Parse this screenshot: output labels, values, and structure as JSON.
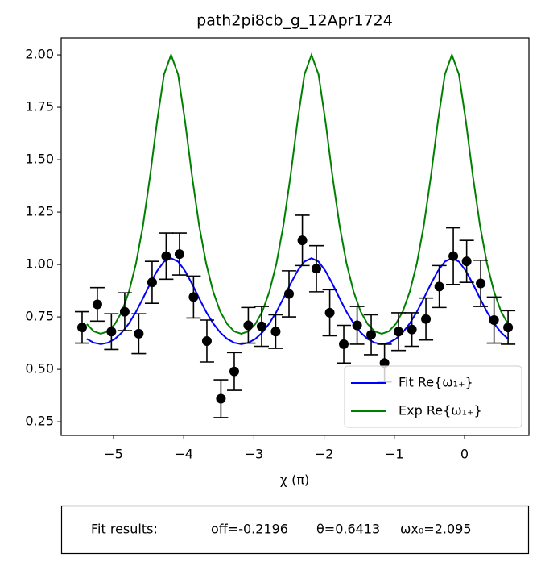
{
  "chart_data": {
    "type": "scatter",
    "title": "path2pi8cb_g_12Apr1724",
    "x_label": "χ (π)",
    "xlim": [
      -5.745,
      0.917
    ],
    "ylim": [
      0.185,
      2.081
    ],
    "xticks": [
      {
        "value": -5,
        "label": "−5"
      },
      {
        "value": -4,
        "label": "−4"
      },
      {
        "value": -3,
        "label": "−3"
      },
      {
        "value": -2,
        "label": "−2"
      },
      {
        "value": -1,
        "label": "−1"
      },
      0
    ],
    "yticks": [
      0.25,
      {
        "value": 0.5,
        "label": "0.50"
      },
      0.75,
      {
        "value": 1,
        "label": "1.00"
      },
      1.25,
      {
        "value": 1.5,
        "label": "1.50"
      },
      1.75,
      {
        "value": 2,
        "label": "2.00"
      }
    ],
    "legend": "lower right",
    "series": [
      {
        "name": "Fit Re{ω₁₊}",
        "color": "#0000ff",
        "x": [
          -5.38,
          -5.28,
          -5.18,
          -5.08,
          -4.98,
          -4.88,
          -4.78,
          -4.68,
          -4.58,
          -4.48,
          -4.38,
          -4.28,
          -4.18,
          -4.08,
          -3.98,
          -3.88,
          -3.78,
          -3.68,
          -3.58,
          -3.48,
          -3.38,
          -3.28,
          -3.18,
          -3.08,
          -2.98,
          -2.88,
          -2.78,
          -2.68,
          -2.58,
          -2.48,
          -2.38,
          -2.28,
          -2.18,
          -2.08,
          -1.98,
          -1.88,
          -1.78,
          -1.68,
          -1.58,
          -1.48,
          -1.38,
          -1.28,
          -1.18,
          -1.08,
          -0.98,
          -0.88,
          -0.78,
          -0.68,
          -0.58,
          -0.48,
          -0.38,
          -0.28,
          -0.18,
          -0.08,
          0.02,
          0.12,
          0.22,
          0.32,
          0.42,
          0.52,
          0.62
        ],
        "values": [
          0.645,
          0.627,
          0.62,
          0.627,
          0.645,
          0.676,
          0.719,
          0.774,
          0.839,
          0.907,
          0.969,
          1.014,
          1.03,
          1.014,
          0.969,
          0.907,
          0.839,
          0.774,
          0.719,
          0.676,
          0.645,
          0.627,
          0.62,
          0.627,
          0.645,
          0.676,
          0.719,
          0.774,
          0.839,
          0.907,
          0.969,
          1.014,
          1.03,
          1.014,
          0.969,
          0.907,
          0.839,
          0.774,
          0.719,
          0.676,
          0.645,
          0.627,
          0.62,
          0.627,
          0.645,
          0.676,
          0.719,
          0.774,
          0.839,
          0.907,
          0.969,
          1.014,
          1.03,
          1.014,
          0.969,
          0.907,
          0.839,
          0.774,
          0.719,
          0.676,
          0.645
        ]
      },
      {
        "name": "Exp Re{ω₁₊}",
        "color": "#008000",
        "x": [
          -5.38,
          -5.28,
          -5.18,
          -5.08,
          -4.98,
          -4.88,
          -4.78,
          -4.68,
          -4.58,
          -4.48,
          -4.38,
          -4.28,
          -4.18,
          -4.08,
          -3.98,
          -3.88,
          -3.78,
          -3.68,
          -3.58,
          -3.48,
          -3.38,
          -3.28,
          -3.18,
          -3.08,
          -2.98,
          -2.88,
          -2.78,
          -2.68,
          -2.58,
          -2.48,
          -2.38,
          -2.28,
          -2.18,
          -2.08,
          -1.98,
          -1.88,
          -1.78,
          -1.68,
          -1.58,
          -1.48,
          -1.38,
          -1.28,
          -1.18,
          -1.08,
          -0.98,
          -0.88,
          -0.78,
          -0.68,
          -0.58,
          -0.48,
          -0.38,
          -0.28,
          -0.18,
          -0.08,
          0.02,
          0.12,
          0.22,
          0.32,
          0.42,
          0.52,
          0.62
        ],
        "values": [
          0.716,
          0.681,
          0.67,
          0.681,
          0.716,
          0.776,
          0.87,
          1.004,
          1.186,
          1.419,
          1.681,
          1.907,
          2.0,
          1.907,
          1.681,
          1.419,
          1.186,
          1.004,
          0.87,
          0.776,
          0.716,
          0.681,
          0.67,
          0.681,
          0.716,
          0.776,
          0.87,
          1.004,
          1.186,
          1.419,
          1.681,
          1.907,
          2.0,
          1.907,
          1.681,
          1.419,
          1.186,
          1.004,
          0.87,
          0.776,
          0.716,
          0.681,
          0.67,
          0.681,
          0.716,
          0.776,
          0.87,
          1.004,
          1.186,
          1.419,
          1.681,
          1.907,
          2.0,
          1.907,
          1.681,
          1.419,
          1.186,
          1.004,
          0.87,
          0.776,
          0.716
        ]
      }
    ],
    "points": {
      "color": "#000000",
      "x": [
        -5.447,
        -5.23,
        -5.03,
        -4.84,
        -4.64,
        -4.45,
        -4.25,
        -4.06,
        -3.86,
        -3.67,
        -3.47,
        -3.28,
        -3.08,
        -2.89,
        -2.69,
        -2.5,
        -2.31,
        -2.11,
        -1.92,
        -1.72,
        -1.53,
        -1.33,
        -1.14,
        -0.94,
        -0.75,
        -0.55,
        -0.36,
        -0.16,
        0.03,
        0.23,
        0.42,
        0.62
      ],
      "values": [
        0.7,
        0.81,
        0.68,
        0.775,
        0.67,
        0.915,
        1.04,
        1.05,
        0.845,
        0.635,
        0.36,
        0.49,
        0.71,
        0.705,
        0.68,
        0.86,
        1.115,
        0.98,
        0.77,
        0.62,
        0.71,
        0.665,
        0.53,
        0.68,
        0.69,
        0.74,
        0.895,
        1.04,
        1.015,
        0.91,
        0.735,
        0.7
      ],
      "errors": [
        0.075,
        0.08,
        0.085,
        0.09,
        0.095,
        0.1,
        0.11,
        0.1,
        0.1,
        0.1,
        0.09,
        0.09,
        0.085,
        0.095,
        0.08,
        0.11,
        0.12,
        0.11,
        0.11,
        0.09,
        0.09,
        0.095,
        0.09,
        0.09,
        0.08,
        0.1,
        0.1,
        0.135,
        0.1,
        0.11,
        0.11,
        0.08
      ]
    }
  },
  "fit_results": {
    "label": "Fit results:",
    "params": [
      "off=-0.2196",
      "θ=0.6413",
      "ωx₀=2.095"
    ]
  }
}
